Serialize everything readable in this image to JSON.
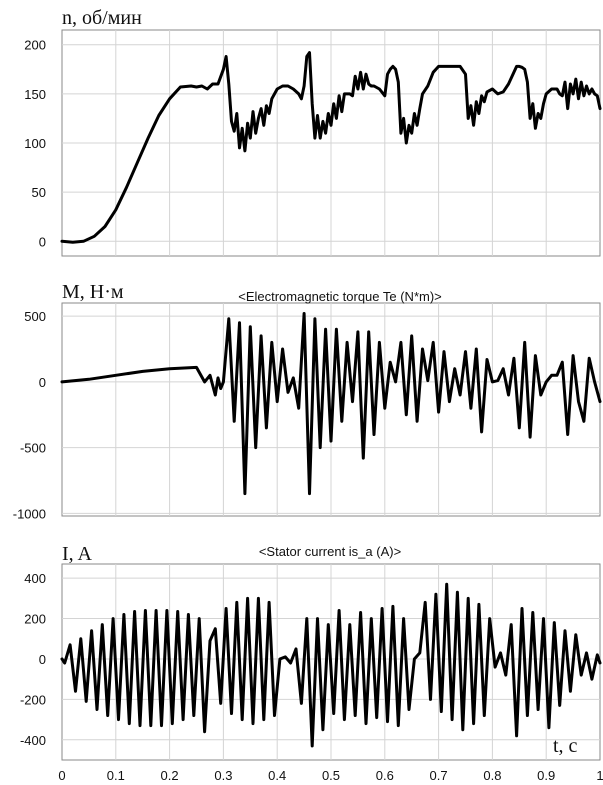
{
  "chart_data": [
    {
      "type": "line",
      "ylabel": "n, об/мин",
      "title": "",
      "xlim": [
        0,
        1
      ],
      "ylim": [
        -15,
        215
      ],
      "yticks": [
        0,
        50,
        100,
        150,
        200
      ],
      "xticks": [
        0,
        0.1,
        0.2,
        0.3,
        0.4,
        0.5,
        0.6,
        0.7,
        0.8,
        0.9,
        1
      ],
      "grid": true,
      "series": [
        {
          "x": [
            0,
            0.02,
            0.04,
            0.06,
            0.08,
            0.1,
            0.12,
            0.14,
            0.16,
            0.18,
            0.2,
            0.22,
            0.24,
            0.25,
            0.26,
            0.27,
            0.28,
            0.29,
            0.3,
            0.305,
            0.31,
            0.315,
            0.32,
            0.325,
            0.33,
            0.335,
            0.34,
            0.345,
            0.35,
            0.355,
            0.36,
            0.365,
            0.37,
            0.375,
            0.38,
            0.385,
            0.39,
            0.4,
            0.41,
            0.42,
            0.43,
            0.44,
            0.445,
            0.45,
            0.455,
            0.46,
            0.465,
            0.47,
            0.475,
            0.48,
            0.485,
            0.49,
            0.495,
            0.5,
            0.505,
            0.51,
            0.515,
            0.52,
            0.525,
            0.53,
            0.535,
            0.54,
            0.545,
            0.55,
            0.555,
            0.56,
            0.565,
            0.57,
            0.575,
            0.58,
            0.59,
            0.6,
            0.605,
            0.61,
            0.615,
            0.62,
            0.625,
            0.63,
            0.635,
            0.64,
            0.645,
            0.65,
            0.655,
            0.66,
            0.665,
            0.67,
            0.68,
            0.69,
            0.7,
            0.72,
            0.74,
            0.75,
            0.755,
            0.76,
            0.765,
            0.77,
            0.775,
            0.78,
            0.785,
            0.79,
            0.8,
            0.81,
            0.82,
            0.83,
            0.84,
            0.845,
            0.85,
            0.855,
            0.86,
            0.865,
            0.87,
            0.875,
            0.88,
            0.885,
            0.89,
            0.895,
            0.9,
            0.91,
            0.92,
            0.925,
            0.93,
            0.935,
            0.94,
            0.945,
            0.95,
            0.955,
            0.96,
            0.965,
            0.97,
            0.975,
            0.98,
            0.985,
            0.99,
            0.995,
            1.0
          ],
          "y": [
            0,
            -1,
            0,
            5,
            15,
            32,
            55,
            80,
            105,
            128,
            145,
            157,
            158,
            157,
            158,
            155,
            160,
            160,
            175,
            188,
            160,
            122,
            112,
            130,
            95,
            115,
            92,
            120,
            105,
            132,
            110,
            125,
            135,
            118,
            138,
            130,
            145,
            155,
            158,
            158,
            155,
            150,
            145,
            158,
            188,
            192,
            140,
            105,
            128,
            105,
            122,
            110,
            130,
            118,
            140,
            125,
            148,
            132,
            150,
            150,
            150,
            148,
            168,
            155,
            172,
            155,
            170,
            160,
            158,
            158,
            155,
            148,
            170,
            175,
            178,
            175,
            162,
            110,
            125,
            100,
            118,
            110,
            130,
            118,
            135,
            150,
            158,
            172,
            178,
            178,
            178,
            170,
            125,
            138,
            118,
            142,
            130,
            148,
            142,
            152,
            155,
            150,
            152,
            160,
            172,
            178,
            178,
            177,
            175,
            162,
            125,
            140,
            115,
            130,
            125,
            140,
            150,
            155,
            155,
            150,
            148,
            162,
            135,
            160,
            150,
            165,
            145,
            162,
            148,
            158,
            150,
            155,
            150,
            148,
            135
          ]
        }
      ]
    },
    {
      "type": "line",
      "ylabel": "M, Н·м",
      "title": "<Electromagnetic torque Te (N*m)>",
      "xlim": [
        0,
        1
      ],
      "ylim": [
        -1020,
        600
      ],
      "yticks": [
        500,
        0,
        -500,
        -1000
      ],
      "xticks": [
        0,
        0.1,
        0.2,
        0.3,
        0.4,
        0.5,
        0.6,
        0.7,
        0.8,
        0.9,
        1
      ],
      "grid": true,
      "series": [
        {
          "x": [
            0,
            0.05,
            0.1,
            0.15,
            0.2,
            0.25,
            0.265,
            0.275,
            0.285,
            0.29,
            0.295,
            0.3,
            0.31,
            0.32,
            0.33,
            0.34,
            0.35,
            0.36,
            0.37,
            0.38,
            0.39,
            0.4,
            0.41,
            0.42,
            0.43,
            0.44,
            0.45,
            0.46,
            0.47,
            0.48,
            0.49,
            0.5,
            0.51,
            0.52,
            0.53,
            0.54,
            0.55,
            0.56,
            0.57,
            0.58,
            0.59,
            0.6,
            0.61,
            0.62,
            0.63,
            0.64,
            0.65,
            0.66,
            0.67,
            0.68,
            0.69,
            0.7,
            0.71,
            0.72,
            0.73,
            0.74,
            0.75,
            0.76,
            0.77,
            0.78,
            0.79,
            0.8,
            0.81,
            0.82,
            0.83,
            0.84,
            0.85,
            0.86,
            0.87,
            0.88,
            0.89,
            0.9,
            0.91,
            0.92,
            0.93,
            0.94,
            0.95,
            0.96,
            0.97,
            0.98,
            0.99,
            1.0
          ],
          "y": [
            0,
            20,
            50,
            80,
            100,
            110,
            0,
            50,
            -100,
            30,
            -50,
            0,
            480,
            -300,
            450,
            -850,
            420,
            -500,
            350,
            -350,
            300,
            -150,
            250,
            -80,
            30,
            -200,
            520,
            -850,
            480,
            -500,
            400,
            -450,
            400,
            -300,
            300,
            -150,
            380,
            -580,
            380,
            -400,
            300,
            -200,
            150,
            0,
            300,
            -250,
            350,
            -300,
            250,
            10,
            300,
            -230,
            230,
            -150,
            100,
            -100,
            230,
            -200,
            250,
            -380,
            170,
            0,
            10,
            100,
            -100,
            180,
            -350,
            300,
            -420,
            200,
            -100,
            0,
            50,
            50,
            150,
            -400,
            200,
            -150,
            -300,
            180,
            0,
            -150
          ]
        }
      ]
    },
    {
      "type": "line",
      "ylabel": "I, A",
      "title": "<Stator current is_a (A)>",
      "xlabel": "t, c",
      "xlim": [
        0,
        1
      ],
      "ylim": [
        -500,
        470
      ],
      "yticks": [
        400,
        200,
        0,
        -200,
        -400
      ],
      "xticks": [
        0,
        0.1,
        0.2,
        0.3,
        0.4,
        0.5,
        0.6,
        0.7,
        0.8,
        0.9,
        1
      ],
      "xticklabels": [
        "0",
        "0.1",
        "0.2",
        "0.3",
        "0.4",
        "0.5",
        "0.6",
        "0.7",
        "0.8",
        "0.9",
        "1"
      ],
      "grid": true,
      "series": [
        {
          "x": [
            0,
            0.005,
            0.015,
            0.025,
            0.035,
            0.045,
            0.055,
            0.065,
            0.075,
            0.085,
            0.095,
            0.105,
            0.115,
            0.125,
            0.135,
            0.145,
            0.155,
            0.165,
            0.175,
            0.185,
            0.195,
            0.205,
            0.215,
            0.225,
            0.235,
            0.245,
            0.255,
            0.265,
            0.275,
            0.285,
            0.295,
            0.305,
            0.315,
            0.325,
            0.335,
            0.345,
            0.355,
            0.365,
            0.375,
            0.385,
            0.395,
            0.405,
            0.415,
            0.425,
            0.435,
            0.445,
            0.455,
            0.465,
            0.475,
            0.485,
            0.495,
            0.505,
            0.515,
            0.525,
            0.535,
            0.545,
            0.555,
            0.565,
            0.575,
            0.585,
            0.595,
            0.605,
            0.615,
            0.625,
            0.635,
            0.645,
            0.655,
            0.665,
            0.675,
            0.685,
            0.695,
            0.705,
            0.715,
            0.725,
            0.735,
            0.745,
            0.755,
            0.765,
            0.775,
            0.785,
            0.795,
            0.805,
            0.815,
            0.825,
            0.835,
            0.845,
            0.855,
            0.865,
            0.875,
            0.885,
            0.895,
            0.905,
            0.915,
            0.925,
            0.935,
            0.945,
            0.955,
            0.965,
            0.975,
            0.985,
            0.995,
            1.0
          ],
          "y": [
            0,
            -20,
            70,
            -160,
            100,
            -210,
            140,
            -250,
            170,
            -280,
            200,
            -300,
            220,
            -320,
            235,
            -330,
            240,
            -330,
            240,
            -330,
            240,
            -320,
            235,
            -300,
            220,
            -280,
            200,
            -360,
            90,
            150,
            -220,
            250,
            -270,
            280,
            -300,
            300,
            -320,
            300,
            -300,
            280,
            -280,
            0,
            10,
            -20,
            50,
            -220,
            200,
            -430,
            200,
            -350,
            170,
            -270,
            240,
            -300,
            170,
            -280,
            230,
            -320,
            200,
            -290,
            250,
            -310,
            260,
            -330,
            200,
            -250,
            0,
            30,
            280,
            -200,
            320,
            -260,
            370,
            -300,
            330,
            -350,
            300,
            -320,
            270,
            -280,
            200,
            -40,
            30,
            -80,
            170,
            -380,
            250,
            -280,
            230,
            -250,
            200,
            -340,
            180,
            -230,
            140,
            -160,
            120,
            -80,
            30,
            -100,
            20,
            -20
          ]
        }
      ]
    }
  ]
}
